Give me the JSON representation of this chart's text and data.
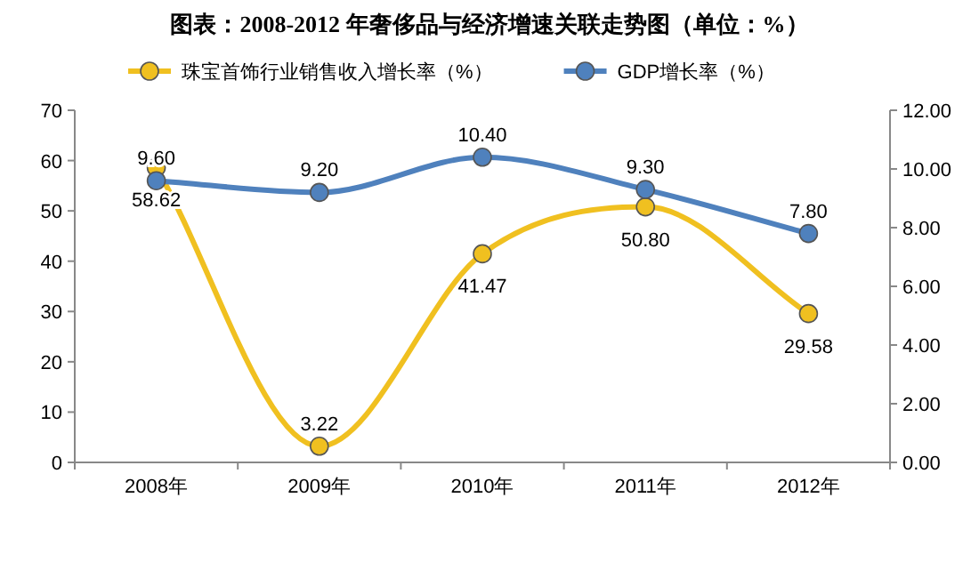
{
  "chart_data": {
    "type": "line",
    "title": "图表：2008-2012 年奢侈品与经济增速关联走势图（单位：%）",
    "categories": [
      "2008年",
      "2009年",
      "2010年",
      "2011年",
      "2012年"
    ],
    "series": [
      {
        "name": "珠宝首饰行业销售收入增长率（%）",
        "color": "#f0c020",
        "values": [
          58.62,
          3.22,
          41.47,
          50.8,
          29.58
        ],
        "value_labels": [
          "58.62",
          "3.22",
          "41.47",
          "50.80",
          "29.58"
        ]
      },
      {
        "name": "GDP增长率（%）",
        "color": "#4f81bd",
        "axis": "y2",
        "values": [
          9.6,
          9.2,
          10.4,
          9.3,
          7.8
        ],
        "value_labels": [
          "9.60",
          "9.20",
          "10.40",
          "9.30",
          "7.80"
        ]
      }
    ],
    "ylim": [
      0,
      70
    ],
    "yticks": [
      0,
      10,
      20,
      30,
      40,
      50,
      60,
      70
    ],
    "y2lim": [
      0,
      12
    ],
    "y2ticks": [
      {
        "value": 0,
        "label": "0.00"
      },
      {
        "value": 2,
        "label": "2.00"
      },
      {
        "value": 4,
        "label": "4.00"
      },
      {
        "value": 6,
        "label": "6.00"
      },
      {
        "value": 8,
        "label": "8.00"
      },
      {
        "value": 10,
        "label": "10.00"
      },
      {
        "value": 12,
        "label": "12.00"
      }
    ],
    "marker": "circle",
    "line_style": "solid",
    "legend": "top",
    "grid": false
  }
}
